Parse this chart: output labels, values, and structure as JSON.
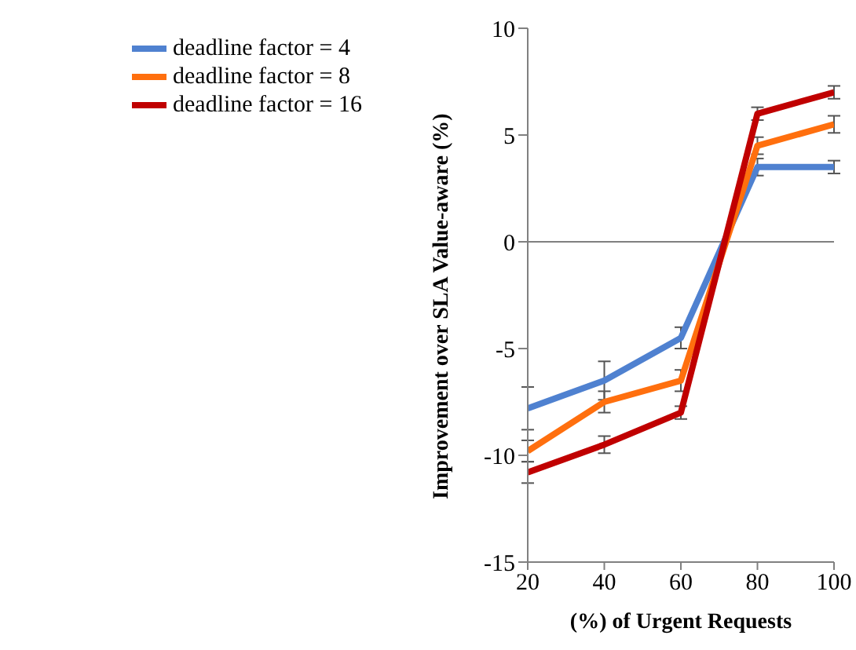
{
  "chart_data": {
    "type": "line",
    "xlabel": "(%) of Urgent Requests",
    "ylabel": "Improvement over SLA Value-aware (%)",
    "x": [
      20,
      40,
      60,
      80,
      100
    ],
    "series": [
      {
        "name": "deadline factor = 4",
        "color": "#4f81d0",
        "values": [
          -7.8,
          -6.5,
          -4.5,
          3.5,
          3.5
        ],
        "errors": [
          1,
          0.9,
          0.5,
          0.4,
          0.3
        ]
      },
      {
        "name": "deadline factor = 8",
        "color": "#ff6f0e",
        "values": [
          -9.8,
          -7.5,
          -6.5,
          4.5,
          5.5
        ],
        "errors": [
          0.5,
          0.5,
          0.5,
          0.4,
          0.4
        ]
      },
      {
        "name": "deadline factor = 16",
        "color": "#c00000",
        "values": [
          -10.8,
          -9.5,
          -8,
          6,
          7
        ],
        "errors": [
          0.5,
          0.4,
          0.3,
          0.3,
          0.3
        ]
      }
    ],
    "xlim": [
      20,
      100
    ],
    "xticks": [
      20,
      40,
      60,
      80,
      100
    ],
    "ylim": [
      -15,
      10
    ],
    "yticks": [
      -15,
      -10,
      -5,
      0,
      5,
      10
    ],
    "ref_lines": [
      {
        "axis": "y",
        "value": 0,
        "color": "#808080"
      }
    ],
    "legend": "top left",
    "grid": false,
    "marker": "none",
    "line_style": "solid"
  }
}
